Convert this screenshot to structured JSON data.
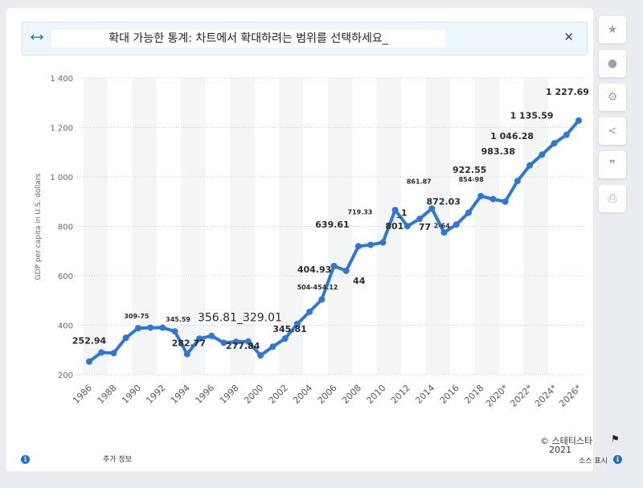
{
  "banner": {
    "text": "확대 가능한 통계: 차트에서 확대하려는 범위를 선택하세요_",
    "expand_icon": "expand-icon",
    "close_icon": "close-icon"
  },
  "sidebar": {
    "buttons": [
      {
        "name": "favorite",
        "icon": "star-icon",
        "glyph": "★"
      },
      {
        "name": "notification",
        "icon": "bell-icon",
        "glyph": "🔔"
      },
      {
        "name": "settings",
        "icon": "gear-icon",
        "glyph": "⚙"
      },
      {
        "name": "share",
        "icon": "share-icon",
        "glyph": "⋖"
      },
      {
        "name": "cite",
        "icon": "quote-icon",
        "glyph": "❞"
      },
      {
        "name": "print",
        "icon": "print-icon",
        "glyph": "⎙"
      }
    ]
  },
  "footer": {
    "more_info": "추가 정보",
    "copyright_line1": "© 스테티스타",
    "copyright_line2": "2021",
    "show_source": "소스 표시"
  },
  "colors": {
    "line": "#2f76d6",
    "grid": "#c9c9c9",
    "band": "#f4f5f7"
  },
  "chart_data": {
    "type": "line",
    "title": "",
    "xlabel": "",
    "ylabel": "GDP per capita in U.S. dollars",
    "ylim": [
      200,
      1400
    ],
    "yticks": [
      200,
      400,
      600,
      800,
      1000,
      1200,
      1400
    ],
    "ytick_labels": [
      "200",
      "400",
      "600",
      "800",
      "1 000",
      "1 200",
      "1 400"
    ],
    "xlim": [
      1986,
      2026
    ],
    "xticks": [
      1986,
      1988,
      1990,
      1992,
      1994,
      1996,
      1998,
      2000,
      2002,
      2004,
      2006,
      2008,
      2010,
      2012,
      2014,
      2016,
      2018,
      2020,
      2022,
      2024,
      2026
    ],
    "xtick_labels": [
      "1986",
      "1988",
      "1990",
      "1992",
      "1994",
      "1996",
      "1998",
      "2000",
      "2002",
      "2004",
      "2006",
      "2008",
      "2010",
      "2012",
      "2014",
      "2016",
      "2018",
      "2020*",
      "2022*",
      "2024*",
      "2026*"
    ],
    "grid": true,
    "series": [
      {
        "x": [
          1986,
          1987,
          1988,
          1989,
          1990,
          1991,
          1992,
          1993,
          1994,
          1995,
          1996,
          1997,
          1998,
          1999,
          2000,
          2001,
          2002,
          2003,
          2004,
          2005,
          2006,
          2007,
          2008,
          2009,
          2010,
          2011,
          2012,
          2013,
          2014,
          2015,
          2016,
          2017,
          2018,
          2019,
          2020,
          2021,
          2022,
          2023,
          2024,
          2025,
          2026
        ],
        "values": [
          252.94,
          290,
          287,
          349,
          388,
          390,
          390,
          375,
          282.77,
          345.59,
          356.81,
          329.01,
          333,
          334,
          277.84,
          313,
          345.81,
          404.93,
          454.12,
          504,
          639.61,
          620,
          719.33,
          725,
          735,
          866,
          801,
          830,
          872.03,
          775,
          807,
          854.98,
          922.55,
          910,
          900,
          983.38,
          1046.28,
          1090,
          1135.59,
          1170,
          1227.69
        ]
      }
    ],
    "data_labels": [
      {
        "x": 1986,
        "text": "252.94"
      },
      {
        "x": 1990,
        "text": "309-75"
      },
      {
        "x": 1993,
        "text": "345.59"
      },
      {
        "x": 1994,
        "text": "282.77"
      },
      {
        "x": 1997,
        "text": "356.81_329.01"
      },
      {
        "x": 2000,
        "text": "277.84"
      },
      {
        "x": 2002,
        "text": "345.81"
      },
      {
        "x": 2004,
        "text": "504-454.12"
      },
      {
        "x": 2004,
        "text": "404.93"
      },
      {
        "x": 2006,
        "text": "639.61"
      },
      {
        "x": 2007,
        "text": "44"
      },
      {
        "x": 2008,
        "text": "719.33"
      },
      {
        "x": 2012,
        "text": "801"
      },
      {
        "x": 2013,
        "text": "_1"
      },
      {
        "x": 2014,
        "text": "861.87"
      },
      {
        "x": 2016,
        "text": "872.03"
      },
      {
        "x": 2015,
        "text": "77"
      },
      {
        "x": 2016,
        "text": "2-64"
      },
      {
        "x": 2018,
        "text": "854-98"
      },
      {
        "x": 2018,
        "text": "922.55"
      },
      {
        "x": 2021,
        "text": "983.38"
      },
      {
        "x": 2022,
        "text": "1 046.28"
      },
      {
        "x": 2024,
        "text": "1 135.59"
      },
      {
        "x": 2026,
        "text": "1 227.69"
      }
    ]
  }
}
